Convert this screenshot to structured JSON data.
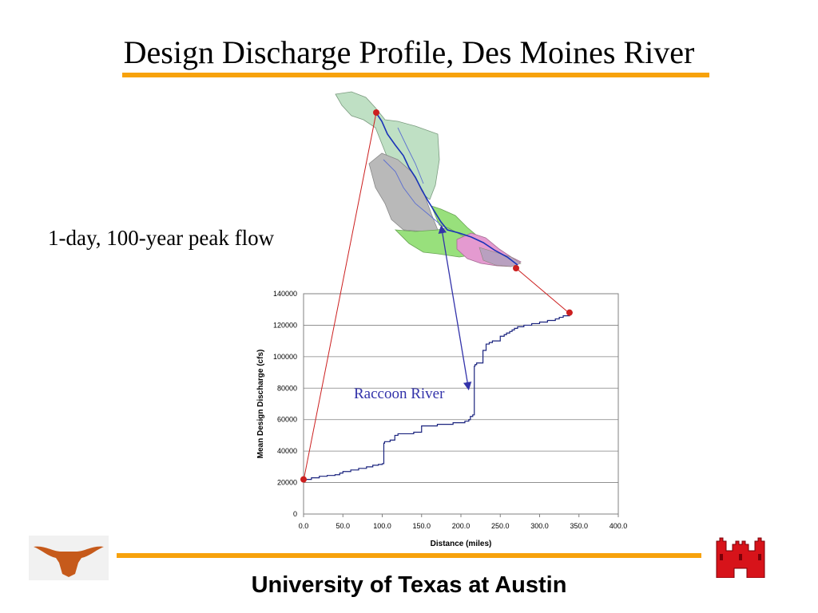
{
  "slide": {
    "title": "Design Discharge Profile, Des Moines River",
    "label": "1-day, 100-year peak flow",
    "footer": "University of Texas at Austin",
    "accent_color": "#f7a20c"
  },
  "map": {
    "icon": "river-basin-map",
    "colors": [
      "#bfe0c4",
      "#b9b9b9",
      "#98e07c",
      "#e49ad0",
      "#1a33b8"
    ]
  },
  "logos": {
    "left": "longhorn-logo-icon",
    "right": "castle-logo-icon",
    "left_color": "#c65a1b",
    "right_color": "#d7131a"
  },
  "chart_data": {
    "type": "line",
    "title": "",
    "xlabel": "Distance (miles)",
    "ylabel": "Mean Design Discharge (cfs)",
    "xlim": [
      0,
      400
    ],
    "ylim": [
      0,
      140000
    ],
    "x_ticks": [
      "0.0",
      "50.0",
      "100.0",
      "150.0",
      "200.0",
      "250.0",
      "300.0",
      "350.0",
      "400.0"
    ],
    "y_ticks": [
      "0",
      "20000",
      "40000",
      "60000",
      "80000",
      "100000",
      "120000",
      "140000"
    ],
    "grid": true,
    "line_color": "#1a237e",
    "series": [
      {
        "name": "",
        "x": [
          0,
          10,
          20,
          30,
          40,
          46,
          50,
          60,
          70,
          80,
          88,
          95,
          100,
          102,
          103,
          110,
          116,
          120,
          140,
          150,
          170,
          190,
          205,
          210,
          212,
          215,
          217,
          218,
          220,
          228,
          232,
          236,
          240,
          250,
          255,
          258,
          262,
          265,
          268,
          272,
          280,
          290,
          300,
          310,
          320,
          325,
          330,
          338
        ],
        "y": [
          22000,
          23000,
          24000,
          24500,
          25000,
          26000,
          27000,
          28000,
          29000,
          30000,
          31000,
          31500,
          32000,
          45000,
          46000,
          47000,
          50000,
          51000,
          52000,
          56000,
          57000,
          58000,
          59000,
          60000,
          62000,
          63000,
          94000,
          95000,
          96000,
          104000,
          108000,
          109000,
          110000,
          113000,
          114000,
          115000,
          116000,
          117000,
          118000,
          119000,
          120000,
          121000,
          122000,
          123000,
          124000,
          125000,
          126000,
          128000
        ]
      }
    ],
    "markers": [
      {
        "x": 0,
        "y": 22000
      },
      {
        "x": 338,
        "y": 128000
      }
    ],
    "annotations": [
      {
        "text": "Raccoon River",
        "color": "#3333aa"
      }
    ]
  }
}
